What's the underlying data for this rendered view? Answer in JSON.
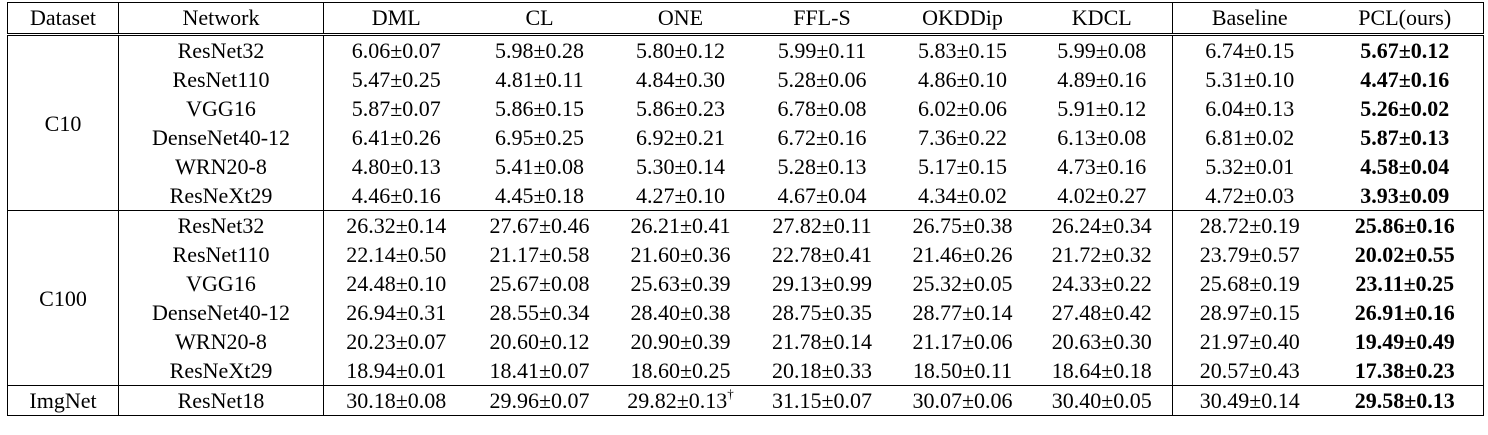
{
  "headers": [
    "Dataset",
    "Network",
    "DML",
    "CL",
    "ONE",
    "FFL-S",
    "OKDDip",
    "KDCL",
    "Baseline",
    "PCL(ours)"
  ],
  "groups": [
    {
      "dataset": "C10",
      "rows": [
        {
          "network": "ResNet32",
          "values": [
            "6.06±0.07",
            "5.98±0.28",
            "5.80±0.12",
            "5.99±0.11",
            "5.83±0.15",
            "5.99±0.08"
          ],
          "baseline": "6.74±0.15",
          "pcl": "5.67±0.12"
        },
        {
          "network": "ResNet110",
          "values": [
            "5.47±0.25",
            "4.81±0.11",
            "4.84±0.30",
            "5.28±0.06",
            "4.86±0.10",
            "4.89±0.16"
          ],
          "baseline": "5.31±0.10",
          "pcl": "4.47±0.16"
        },
        {
          "network": "VGG16",
          "values": [
            "5.87±0.07",
            "5.86±0.15",
            "5.86±0.23",
            "6.78±0.08",
            "6.02±0.06",
            "5.91±0.12"
          ],
          "baseline": "6.04±0.13",
          "pcl": "5.26±0.02"
        },
        {
          "network": "DenseNet40-12",
          "values": [
            "6.41±0.26",
            "6.95±0.25",
            "6.92±0.21",
            "6.72±0.16",
            "7.36±0.22",
            "6.13±0.08"
          ],
          "baseline": "6.81±0.02",
          "pcl": "5.87±0.13"
        },
        {
          "network": "WRN20-8",
          "values": [
            "4.80±0.13",
            "5.41±0.08",
            "5.30±0.14",
            "5.28±0.13",
            "5.17±0.15",
            "4.73±0.16"
          ],
          "baseline": "5.32±0.01",
          "pcl": "4.58±0.04"
        },
        {
          "network": "ResNeXt29",
          "values": [
            "4.46±0.16",
            "4.45±0.18",
            "4.27±0.10",
            "4.67±0.04",
            "4.34±0.02",
            "4.02±0.27"
          ],
          "baseline": "4.72±0.03",
          "pcl": "3.93±0.09"
        }
      ]
    },
    {
      "dataset": "C100",
      "rows": [
        {
          "network": "ResNet32",
          "values": [
            "26.32±0.14",
            "27.67±0.46",
            "26.21±0.41",
            "27.82±0.11",
            "26.75±0.38",
            "26.24±0.34"
          ],
          "baseline": "28.72±0.19",
          "pcl": "25.86±0.16"
        },
        {
          "network": "ResNet110",
          "values": [
            "22.14±0.50",
            "21.17±0.58",
            "21.60±0.36",
            "22.78±0.41",
            "21.46±0.26",
            "21.72±0.32"
          ],
          "baseline": "23.79±0.57",
          "pcl": "20.02±0.55"
        },
        {
          "network": "VGG16",
          "values": [
            "24.48±0.10",
            "25.67±0.08",
            "25.63±0.39",
            "29.13±0.99",
            "25.32±0.05",
            "24.33±0.22"
          ],
          "baseline": "25.68±0.19",
          "pcl": "23.11±0.25"
        },
        {
          "network": "DenseNet40-12",
          "values": [
            "26.94±0.31",
            "28.55±0.34",
            "28.40±0.38",
            "28.75±0.35",
            "28.77±0.14",
            "27.48±0.42"
          ],
          "baseline": "28.97±0.15",
          "pcl": "26.91±0.16"
        },
        {
          "network": "WRN20-8",
          "values": [
            "20.23±0.07",
            "20.60±0.12",
            "20.90±0.39",
            "21.78±0.14",
            "21.17±0.06",
            "20.63±0.30"
          ],
          "baseline": "21.97±0.40",
          "pcl": "19.49±0.49"
        },
        {
          "network": "ResNeXt29",
          "values": [
            "18.94±0.01",
            "18.41±0.07",
            "18.60±0.25",
            "20.18±0.33",
            "18.50±0.11",
            "18.64±0.18"
          ],
          "baseline": "20.57±0.43",
          "pcl": "17.38±0.23"
        }
      ]
    },
    {
      "dataset": "ImgNet",
      "rows": [
        {
          "network": "ResNet18",
          "values": [
            "30.18±0.08",
            "29.96±0.07",
            "29.82±0.13",
            "31.15±0.07",
            "30.07±0.06",
            "30.40±0.05"
          ],
          "baseline": "30.49±0.14",
          "pcl": "29.58±0.13"
        }
      ]
    }
  ],
  "footnote_mark": "†"
}
